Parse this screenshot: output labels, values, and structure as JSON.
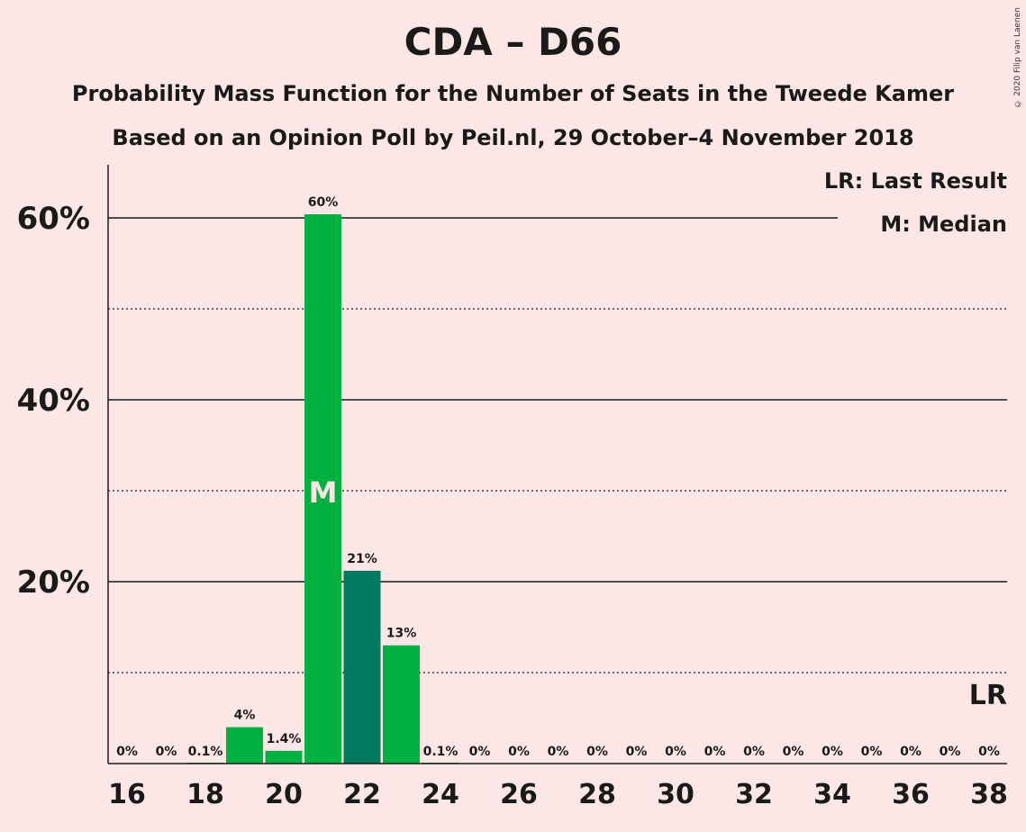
{
  "title": "CDA – D66",
  "subtitle_1": "Probability Mass Function for the Number of Seats in the Tweede Kamer",
  "subtitle_2": "Based on an Opinion Poll by Peil.nl, 29 October–4 November 2018",
  "copyright": "© 2020 Filip van Laenen",
  "colors": {
    "background": "#FCE6E6",
    "bar_primary": "#00B140",
    "bar_highlight": "#007A5E",
    "text": "#1a1a1a"
  },
  "chart_data": {
    "type": "bar",
    "x": [
      16,
      17,
      18,
      19,
      20,
      21,
      22,
      23,
      24,
      25,
      26,
      27,
      28,
      29,
      30,
      31,
      32,
      33,
      34,
      35,
      36,
      37,
      38
    ],
    "values": [
      0,
      0,
      0.1,
      4,
      1.4,
      60.4,
      21.2,
      13,
      0.1,
      0,
      0,
      0,
      0,
      0,
      0,
      0,
      0,
      0,
      0,
      0,
      0,
      0,
      0
    ],
    "value_labels": [
      "0%",
      "0%",
      "0.1%",
      "4%",
      "1.4%",
      "60%",
      "21%",
      "13%",
      "0.1%",
      "0%",
      "0%",
      "0%",
      "0%",
      "0%",
      "0%",
      "0%",
      "0%",
      "0%",
      "0%",
      "0%",
      "0%",
      "0%",
      "0%"
    ],
    "highlight_x": 22,
    "median_x": 21,
    "median_marker": "M",
    "last_result_x": 38,
    "last_result_marker": "LR",
    "xticks": [
      16,
      18,
      20,
      22,
      24,
      26,
      28,
      30,
      32,
      34,
      36,
      38
    ],
    "yticks": [
      "20%",
      "40%",
      "60%"
    ],
    "ylim": [
      0,
      66
    ],
    "solid_grid": [
      20,
      40,
      60
    ],
    "dotted_grid": [
      10,
      30,
      50
    ],
    "legend": [
      "LR: Last Result",
      "M: Median"
    ],
    "legend_position": "top-right"
  }
}
